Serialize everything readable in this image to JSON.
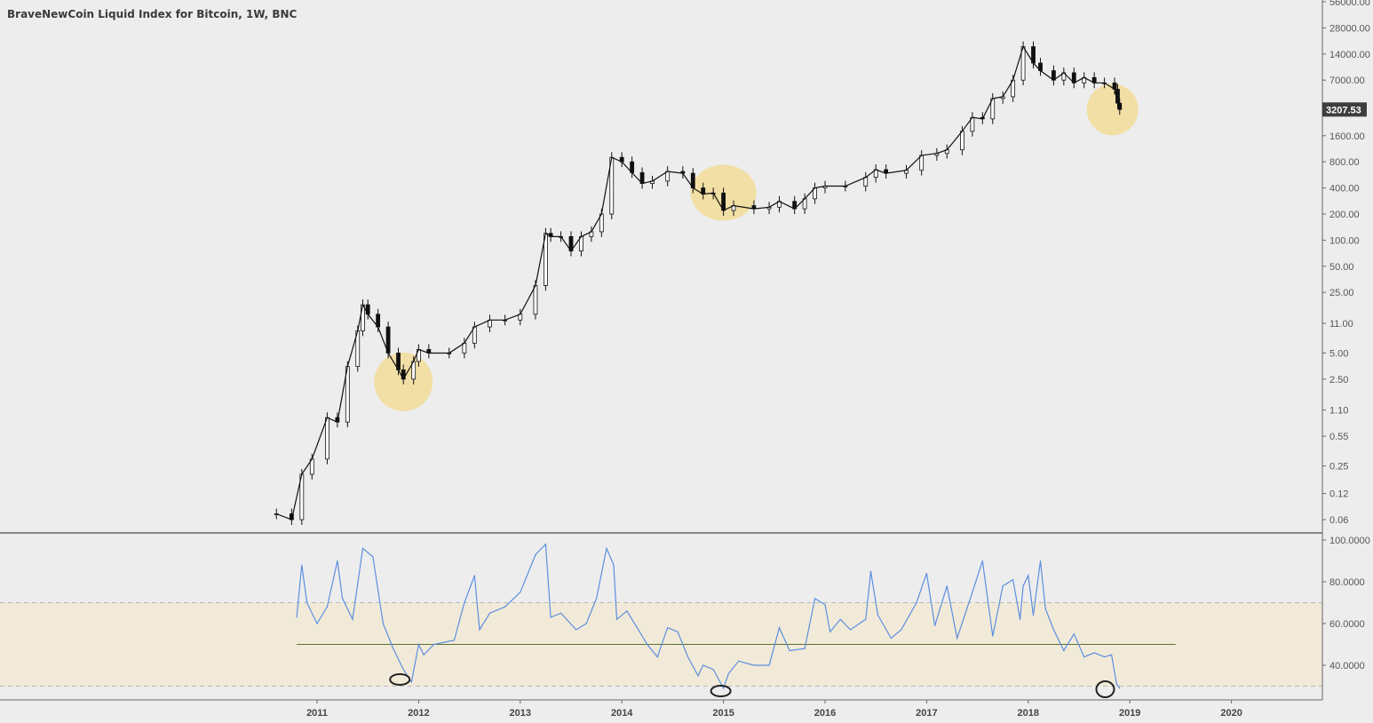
{
  "title": "BraveNewCoin Liquid Index for Bitcoin, 1W, BNC",
  "colors": {
    "background": "#ededed",
    "price": "#111111",
    "rsi": "#5b8fe0",
    "rsi_band": "#f2ead8",
    "midline": "#5a7030",
    "highlight": "#f5d77e",
    "price_badge": "#3d3d3d"
  },
  "chart_data": [
    {
      "type": "line",
      "pane": "price",
      "y_scale": "log",
      "ylim": [
        0.05,
        56000
      ],
      "y_ticks": [
        "56000.00",
        "28000.00",
        "14000.00",
        "7000.00",
        "1600.00",
        "800.00",
        "400.00",
        "200.00",
        "100.00",
        "50.00",
        "25.00",
        "11.00",
        "5.00",
        "2.50",
        "1.10",
        "0.55",
        "0.25",
        "0.12",
        "0.06"
      ],
      "y_tick_values": [
        56000,
        28000,
        14000,
        7000,
        1600,
        800,
        400,
        200,
        100,
        50,
        25,
        11,
        5,
        2.5,
        1.1,
        0.55,
        0.25,
        0.12,
        0.06
      ],
      "last_price": "3207.53",
      "last_price_value": 3207.53,
      "x": [
        2010.6,
        2010.75,
        2010.85,
        2010.95,
        2011.1,
        2011.2,
        2011.3,
        2011.4,
        2011.45,
        2011.5,
        2011.6,
        2011.7,
        2011.8,
        2011.85,
        2011.95,
        2012.0,
        2012.1,
        2012.3,
        2012.45,
        2012.55,
        2012.7,
        2012.85,
        2013.0,
        2013.15,
        2013.25,
        2013.3,
        2013.4,
        2013.5,
        2013.6,
        2013.7,
        2013.8,
        2013.9,
        2014.0,
        2014.1,
        2014.2,
        2014.3,
        2014.45,
        2014.6,
        2014.7,
        2014.8,
        2014.9,
        2015.0,
        2015.1,
        2015.3,
        2015.45,
        2015.55,
        2015.7,
        2015.8,
        2015.9,
        2016.0,
        2016.2,
        2016.4,
        2016.5,
        2016.6,
        2016.8,
        2016.95,
        2017.1,
        2017.2,
        2017.35,
        2017.45,
        2017.55,
        2017.65,
        2017.75,
        2017.85,
        2017.95,
        2018.05,
        2018.12,
        2018.25,
        2018.35,
        2018.45,
        2018.55,
        2018.65,
        2018.75,
        2018.85,
        2018.88,
        2018.9
      ],
      "values": [
        0.07,
        0.06,
        0.2,
        0.3,
        0.9,
        0.8,
        3.5,
        9,
        18,
        14,
        10,
        5,
        3.2,
        2.5,
        4,
        5.5,
        5,
        5,
        6.5,
        10,
        12,
        12,
        14,
        30,
        120,
        110,
        110,
        75,
        110,
        125,
        200,
        900,
        800,
        600,
        450,
        480,
        620,
        590,
        400,
        340,
        350,
        220,
        250,
        230,
        240,
        280,
        230,
        300,
        400,
        420,
        420,
        530,
        650,
        590,
        640,
        950,
        1000,
        1100,
        1800,
        2600,
        2500,
        4300,
        4500,
        7000,
        17000,
        11000,
        9000,
        7000,
        8500,
        6500,
        7500,
        6500,
        6500,
        5500,
        3800,
        3207.53
      ]
    },
    {
      "type": "line",
      "pane": "rsi",
      "ylim": [
        20,
        100
      ],
      "y_ticks": [
        "100.0000",
        "80.0000",
        "60.0000",
        "40.0000"
      ],
      "y_tick_values": [
        100,
        80,
        60,
        40
      ],
      "band": [
        30,
        70
      ],
      "midline": 50,
      "x": [
        2010.8,
        2010.85,
        2010.9,
        2011.0,
        2011.1,
        2011.2,
        2011.25,
        2011.35,
        2011.45,
        2011.55,
        2011.65,
        2011.75,
        2011.85,
        2011.93,
        2012.0,
        2012.05,
        2012.15,
        2012.35,
        2012.45,
        2012.55,
        2012.6,
        2012.7,
        2012.85,
        2013.0,
        2013.15,
        2013.25,
        2013.3,
        2013.4,
        2013.55,
        2013.65,
        2013.75,
        2013.85,
        2013.92,
        2013.95,
        2014.05,
        2014.15,
        2014.25,
        2014.35,
        2014.45,
        2014.55,
        2014.65,
        2014.75,
        2014.8,
        2014.9,
        2015.0,
        2015.05,
        2015.15,
        2015.3,
        2015.45,
        2015.55,
        2015.65,
        2015.8,
        2015.9,
        2016.0,
        2016.05,
        2016.15,
        2016.25,
        2016.4,
        2016.45,
        2016.52,
        2016.65,
        2016.75,
        2016.9,
        2017.0,
        2017.08,
        2017.2,
        2017.3,
        2017.45,
        2017.55,
        2017.6,
        2017.65,
        2017.75,
        2017.85,
        2017.92,
        2017.95,
        2018.0,
        2018.05,
        2018.12,
        2018.17,
        2018.25,
        2018.35,
        2018.45,
        2018.55,
        2018.65,
        2018.75,
        2018.82,
        2018.87,
        2018.9
      ],
      "values": [
        63,
        88,
        70,
        60,
        68,
        90,
        72,
        62,
        96,
        92,
        60,
        48,
        38,
        32,
        50,
        45,
        50,
        52,
        70,
        83,
        57,
        65,
        68,
        75,
        93,
        98,
        63,
        65,
        57,
        60,
        72,
        96,
        88,
        62,
        66,
        58,
        50,
        44,
        58,
        56,
        44,
        35,
        40,
        38,
        29,
        36,
        42,
        40,
        40,
        58,
        47,
        48,
        72,
        69,
        56,
        62,
        57,
        62,
        85,
        64,
        53,
        57,
        70,
        84,
        59,
        78,
        53,
        75,
        90,
        72,
        54,
        78,
        81,
        62,
        78,
        83,
        64,
        90,
        67,
        57,
        47,
        55,
        44,
        46,
        44,
        45,
        31,
        29
      ]
    }
  ],
  "x_axis": {
    "labels": [
      "2011",
      "2012",
      "2013",
      "2014",
      "2015",
      "2016",
      "2017",
      "2018",
      "2019",
      "2020"
    ],
    "values": [
      2011,
      2012,
      2013,
      2014,
      2015,
      2016,
      2017,
      2018,
      2019,
      2020
    ]
  },
  "annotations": {
    "highlight_circles": [
      2011.85,
      2015.0,
      2018.9
    ],
    "rsi_ovals": [
      2011.85,
      2015.0,
      2018.88
    ]
  }
}
